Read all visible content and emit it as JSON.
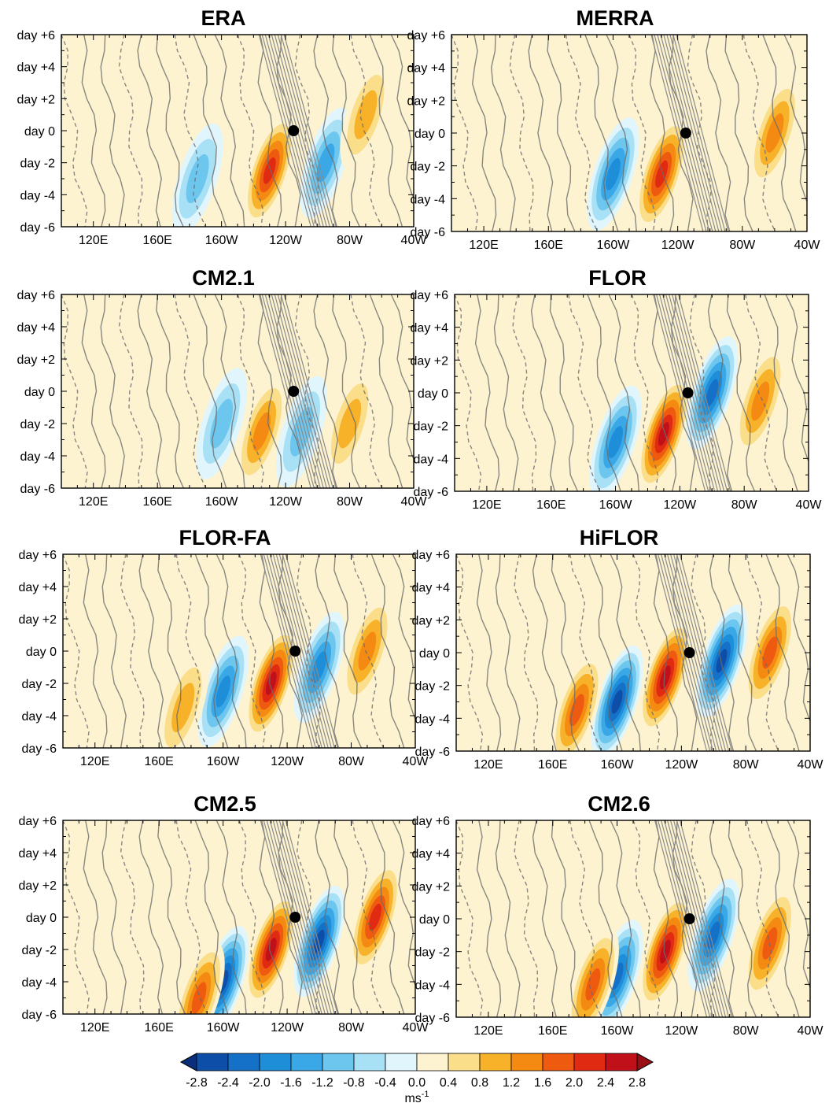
{
  "figure": {
    "colorbar": {
      "labels": [
        "-2.8",
        "-2.4",
        "-2.0",
        "-1.6",
        "-1.2",
        "-0.8",
        "-0.4",
        "0.0",
        "0.4",
        "0.8",
        "1.2",
        "1.6",
        "2.0",
        "2.4",
        "2.8"
      ],
      "colors": [
        "#0b2e7a",
        "#0d4fa8",
        "#1570c8",
        "#1e8ed8",
        "#3aa8e6",
        "#6cc6ee",
        "#a8e0f6",
        "#e0f6fc",
        "#fdf3d0",
        "#fbde8a",
        "#f7b22a",
        "#f48a12",
        "#ee5a10",
        "#e02a12",
        "#c0101a",
        "#9a0e16"
      ],
      "unit_base": "ms",
      "unit_exp": "-1"
    }
  },
  "chart_data": [
    {
      "type": "heatmap",
      "title": "ERA",
      "x_ticks": [
        "120E",
        "160E",
        "160W",
        "120W",
        "80W",
        "40W"
      ],
      "y_ticks": [
        "day +6",
        "day +4",
        "day +2",
        "day 0",
        "day -2",
        "day -4",
        "day -6"
      ],
      "xlim": [
        "100E",
        "40W"
      ],
      "ylim": [
        -6,
        6
      ],
      "reference_point": {
        "lon": "115W",
        "day": 0
      },
      "anomaly_centers": [
        {
          "sign": "positive",
          "lon": "130W",
          "day": -2.5,
          "amplitude_ms": 2.4
        },
        {
          "sign": "negative",
          "lon": "95W",
          "day": -2.0,
          "amplitude_ms": -1.6
        },
        {
          "sign": "positive",
          "lon": "70W",
          "day": 1.0,
          "amplitude_ms": 1.2
        },
        {
          "sign": "negative",
          "lon": "175W",
          "day": -3.0,
          "amplitude_ms": -1.2
        }
      ]
    },
    {
      "type": "heatmap",
      "title": "MERRA",
      "x_ticks": [
        "120E",
        "160E",
        "160W",
        "120W",
        "80W",
        "40W"
      ],
      "y_ticks": [
        "day +6",
        "day +4",
        "day +2",
        "day 0",
        "day -2",
        "day -4",
        "day -6"
      ],
      "xlim": [
        "100E",
        "40W"
      ],
      "ylim": [
        -6,
        6
      ],
      "reference_point": {
        "lon": "115W",
        "day": 0
      },
      "anomaly_centers": [
        {
          "sign": "positive",
          "lon": "130W",
          "day": -2.5,
          "amplitude_ms": 2.4
        },
        {
          "sign": "negative",
          "lon": "160W",
          "day": -2.5,
          "amplitude_ms": -2.0
        },
        {
          "sign": "positive",
          "lon": "60W",
          "day": 0.0,
          "amplitude_ms": 1.6
        }
      ]
    },
    {
      "type": "heatmap",
      "title": "CM2.1",
      "x_ticks": [
        "120E",
        "160E",
        "160W",
        "120W",
        "80W",
        "40W"
      ],
      "y_ticks": [
        "day +6",
        "day +4",
        "day +2",
        "day 0",
        "day -2",
        "day -4",
        "day -6"
      ],
      "xlim": [
        "100E",
        "40W"
      ],
      "ylim": [
        -6,
        6
      ],
      "reference_point": {
        "lon": "115W",
        "day": 0
      },
      "anomaly_centers": [
        {
          "sign": "positive",
          "lon": "135W",
          "day": -2.5,
          "amplitude_ms": 1.6
        },
        {
          "sign": "negative",
          "lon": "160W",
          "day": -2.0,
          "amplitude_ms": -1.2
        },
        {
          "sign": "positive",
          "lon": "80W",
          "day": -2.0,
          "amplitude_ms": 1.2
        },
        {
          "sign": "negative",
          "lon": "110W",
          "day": -2.5,
          "amplitude_ms": -1.2
        }
      ]
    },
    {
      "type": "heatmap",
      "title": "FLOR",
      "x_ticks": [
        "120E",
        "160E",
        "160W",
        "120W",
        "80W",
        "40W"
      ],
      "y_ticks": [
        "day +6",
        "day +4",
        "day +2",
        "day 0",
        "day -2",
        "day -4",
        "day -6"
      ],
      "xlim": [
        "100E",
        "40W"
      ],
      "ylim": [
        -6,
        6
      ],
      "reference_point": {
        "lon": "115W",
        "day": 0
      },
      "anomaly_centers": [
        {
          "sign": "positive",
          "lon": "130W",
          "day": -2.5,
          "amplitude_ms": 2.8
        },
        {
          "sign": "negative",
          "lon": "100W",
          "day": 0.0,
          "amplitude_ms": -2.4
        },
        {
          "sign": "negative",
          "lon": "160W",
          "day": -3.0,
          "amplitude_ms": -2.0
        },
        {
          "sign": "positive",
          "lon": "70W",
          "day": -0.5,
          "amplitude_ms": 1.6
        }
      ]
    },
    {
      "type": "heatmap",
      "title": "FLOR-FA",
      "x_ticks": [
        "120E",
        "160E",
        "160W",
        "120W",
        "80W",
        "40W"
      ],
      "y_ticks": [
        "day +6",
        "day +4",
        "day +2",
        "day 0",
        "day -2",
        "day -4",
        "day -6"
      ],
      "xlim": [
        "100E",
        "40W"
      ],
      "ylim": [
        -6,
        6
      ],
      "reference_point": {
        "lon": "115W",
        "day": 0
      },
      "anomaly_centers": [
        {
          "sign": "positive",
          "lon": "130W",
          "day": -2.0,
          "amplitude_ms": 2.8
        },
        {
          "sign": "negative",
          "lon": "100W",
          "day": -1.0,
          "amplitude_ms": -2.0
        },
        {
          "sign": "negative",
          "lon": "160W",
          "day": -2.5,
          "amplitude_ms": -2.0
        },
        {
          "sign": "positive",
          "lon": "70W",
          "day": 0.0,
          "amplitude_ms": 1.6
        },
        {
          "sign": "positive",
          "lon": "185W",
          "day": -3.5,
          "amplitude_ms": 1.2
        }
      ]
    },
    {
      "type": "heatmap",
      "title": "HiFLOR",
      "x_ticks": [
        "120E",
        "160E",
        "160W",
        "120W",
        "80W",
        "40W"
      ],
      "y_ticks": [
        "day +6",
        "day +4",
        "day +2",
        "day 0",
        "day -2",
        "day -4",
        "day -6"
      ],
      "xlim": [
        "100E",
        "40W"
      ],
      "ylim": [
        -6,
        6
      ],
      "reference_point": {
        "lon": "115W",
        "day": 0
      },
      "anomaly_centers": [
        {
          "sign": "positive",
          "lon": "130W",
          "day": -1.5,
          "amplitude_ms": 2.8
        },
        {
          "sign": "negative",
          "lon": "95W",
          "day": -0.5,
          "amplitude_ms": -2.8
        },
        {
          "sign": "negative",
          "lon": "160W",
          "day": -3.0,
          "amplitude_ms": -2.8
        },
        {
          "sign": "positive",
          "lon": "65W",
          "day": 0.0,
          "amplitude_ms": 2.0
        },
        {
          "sign": "positive",
          "lon": "185W",
          "day": -3.5,
          "amplitude_ms": 2.0
        }
      ]
    },
    {
      "type": "heatmap",
      "title": "CM2.5",
      "x_ticks": [
        "120E",
        "160E",
        "160W",
        "120W",
        "80W",
        "40W"
      ],
      "y_ticks": [
        "day +6",
        "day +4",
        "day +2",
        "day 0",
        "day -2",
        "day -4",
        "day -6"
      ],
      "xlim": [
        "100E",
        "40W"
      ],
      "ylim": [
        -6,
        6
      ],
      "reference_point": {
        "lon": "115W",
        "day": 0
      },
      "anomaly_centers": [
        {
          "sign": "positive",
          "lon": "130W",
          "day": -2.0,
          "amplitude_ms": 2.8
        },
        {
          "sign": "negative",
          "lon": "100W",
          "day": -1.5,
          "amplitude_ms": -2.8
        },
        {
          "sign": "negative",
          "lon": "160W",
          "day": -4.0,
          "amplitude_ms": -2.8
        },
        {
          "sign": "positive",
          "lon": "65W",
          "day": 0.0,
          "amplitude_ms": 2.4
        },
        {
          "sign": "positive",
          "lon": "175W",
          "day": -5.0,
          "amplitude_ms": 2.0
        }
      ]
    },
    {
      "type": "heatmap",
      "title": "CM2.6",
      "x_ticks": [
        "120E",
        "160E",
        "160W",
        "120W",
        "80W",
        "40W"
      ],
      "y_ticks": [
        "day +6",
        "day +4",
        "day +2",
        "day 0",
        "day -2",
        "day -4",
        "day -6"
      ],
      "xlim": [
        "100E",
        "40W"
      ],
      "ylim": [
        -6,
        6
      ],
      "reference_point": {
        "lon": "115W",
        "day": 0
      },
      "anomaly_centers": [
        {
          "sign": "positive",
          "lon": "130W",
          "day": -2.0,
          "amplitude_ms": 2.8
        },
        {
          "sign": "negative",
          "lon": "100W",
          "day": -1.0,
          "amplitude_ms": -2.4
        },
        {
          "sign": "negative",
          "lon": "160W",
          "day": -3.5,
          "amplitude_ms": -2.4
        },
        {
          "sign": "positive",
          "lon": "65W",
          "day": -1.5,
          "amplitude_ms": 2.0
        },
        {
          "sign": "positive",
          "lon": "175W",
          "day": -4.0,
          "amplitude_ms": 2.0
        }
      ]
    }
  ]
}
